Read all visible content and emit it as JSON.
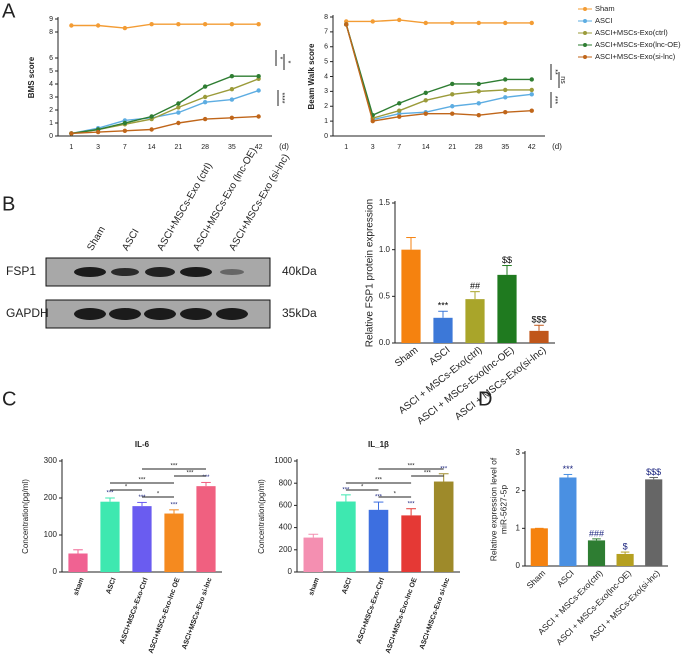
{
  "panel_labels": [
    "A",
    "B",
    "C",
    "D"
  ],
  "blot": {
    "lanes": [
      "Sham",
      "ASCI",
      "ASCI+MSCs-Exo (ctrl)",
      "ASCI+MSCs-Exo (lnc-OE)",
      "ASCI+MSCs-Exo (si-lnc)"
    ],
    "rows": [
      "FSP1",
      "GAPDH"
    ],
    "sizes": [
      "40kDa",
      "35kDa"
    ]
  },
  "chart_data": [
    {
      "type": "line",
      "ylabel": "BMS score",
      "xlabel": "(d)",
      "categories": [
        "1",
        "3",
        "7",
        "14",
        "21",
        "28",
        "35",
        "42"
      ],
      "ylim": [
        0,
        9
      ],
      "yticks": [
        0,
        1,
        2,
        3,
        4,
        5,
        6,
        8,
        9
      ],
      "series": [
        {
          "name": "Sham",
          "color": "#f39c34",
          "values": [
            8.5,
            8.5,
            8.3,
            8.6,
            8.6,
            8.6,
            8.6,
            8.6
          ]
        },
        {
          "name": "ASCI",
          "color": "#5dade2",
          "values": [
            0.2,
            0.6,
            1.2,
            1.4,
            1.8,
            2.6,
            2.8,
            3.5
          ]
        },
        {
          "name": "ASCI+MSCs-Exo(ctrl)",
          "color": "#9b9b3a",
          "values": [
            0.2,
            0.5,
            0.9,
            1.3,
            2.2,
            3.0,
            3.6,
            4.4
          ]
        },
        {
          "name": "ASCI+MSCs-Exo(lnc-OE)",
          "color": "#2e7d32",
          "values": [
            0.2,
            0.5,
            1.0,
            1.5,
            2.5,
            3.8,
            4.6,
            4.6
          ]
        },
        {
          "name": "ASCI+MSCs-Exo(si-lnc)",
          "color": "#c0661a",
          "values": [
            0.2,
            0.3,
            0.4,
            0.5,
            1.0,
            1.3,
            1.4,
            1.5
          ]
        }
      ],
      "annotations": [
        {
          "text": "*"
        },
        {
          "text": "*"
        },
        {
          "text": "****"
        }
      ]
    },
    {
      "type": "line",
      "ylabel": "Beam Walk score",
      "xlabel": "(d)",
      "legend": "outside-right",
      "categories": [
        "1",
        "3",
        "7",
        "14",
        "21",
        "28",
        "35",
        "42"
      ],
      "ylim": [
        0,
        8
      ],
      "yticks": [
        0,
        1,
        2,
        3,
        4,
        5,
        6,
        7,
        8
      ],
      "series": [
        {
          "name": "Sham",
          "color": "#f39c34",
          "values": [
            7.7,
            7.7,
            7.8,
            7.6,
            7.6,
            7.6,
            7.6,
            7.6
          ]
        },
        {
          "name": "ASCI",
          "color": "#5dade2",
          "values": [
            7.5,
            1.1,
            1.5,
            1.6,
            2.0,
            2.2,
            2.6,
            2.8
          ]
        },
        {
          "name": "ASCI+MSCs-Exo(ctrl)",
          "color": "#9b9b3a",
          "values": [
            7.5,
            1.2,
            1.7,
            2.4,
            2.8,
            3.0,
            3.1,
            3.1
          ]
        },
        {
          "name": "ASCI+MSCs-Exo(lnc-OE)",
          "color": "#2e7d32",
          "values": [
            7.5,
            1.4,
            2.2,
            2.9,
            3.5,
            3.5,
            3.8,
            3.8
          ]
        },
        {
          "name": "ASCI+MSCs-Exo(si-lnc)",
          "color": "#c0661a",
          "values": [
            7.5,
            1.0,
            1.3,
            1.5,
            1.5,
            1.4,
            1.6,
            1.7
          ]
        }
      ],
      "annotations": [
        {
          "text": "**"
        },
        {
          "text": "ns"
        },
        {
          "text": "***"
        }
      ]
    },
    {
      "type": "bar",
      "ylabel": "Relative FSP1 protein expression",
      "categories": [
        "Sham",
        "ASCI",
        "ASCI + MSCs-Exo(ctrl)",
        "ASCI + MSCs-Exo(lnc-OE)",
        "ASCI + MSCs-Exo(si-lnc)"
      ],
      "values": [
        1.0,
        0.27,
        0.47,
        0.73,
        0.13
      ],
      "errors": [
        0.13,
        0.07,
        0.08,
        0.1,
        0.06
      ],
      "colors": [
        "#f5820f",
        "#3c78d8",
        "#a9a52a",
        "#1f7a1f",
        "#c0561a"
      ],
      "ylim": [
        0,
        1.5
      ],
      "yticks": [
        {
          "value": 0,
          "label": "0.0"
        },
        {
          "value": 0.5,
          "label": "0.5"
        },
        {
          "value": 1,
          "label": "1.0"
        },
        {
          "value": 1.5,
          "label": "1.5"
        }
      ],
      "annotations": [
        {
          "category": "ASCI",
          "text": "***"
        },
        {
          "category": "ASCI + MSCs-Exo(ctrl)",
          "text": "##"
        },
        {
          "category": "ASCI + MSCs-Exo(lnc-OE)",
          "text": "$$"
        },
        {
          "category": "ASCI + MSCs-Exo(si-lnc)",
          "text": "$$$"
        }
      ]
    },
    {
      "type": "bar",
      "title": "IL-6",
      "ylabel": "Concentration(pg/ml)",
      "categories": [
        "sham",
        "ASCI",
        "ASCI+MSCs-Exo-Ctrl",
        "ASCI+MSCs-Exo-lnc OE",
        "ASCI+MSCs-Exo si-lnc"
      ],
      "values": [
        50,
        190,
        178,
        158,
        232
      ],
      "errors": [
        10,
        10,
        10,
        10,
        10
      ],
      "colors": [
        "#f06292",
        "#3ee8b0",
        "#6a5cf0",
        "#f58a1f",
        "#f06080"
      ],
      "ylim": [
        0,
        300
      ],
      "yticks": [
        0,
        100,
        200,
        300
      ],
      "annotations": [
        {
          "category": "ASCI",
          "text": "***"
        },
        {
          "category": "ASCI+MSCs-Exo-Ctrl",
          "text": "***"
        },
        {
          "category": "ASCI+MSCs-Exo-lnc OE",
          "text": "***"
        },
        {
          "category": "ASCI+MSCs-Exo si-lnc",
          "text": "***"
        }
      ],
      "comparisons": [
        {
          "from": "ASCI+MSCs-Exo-Ctrl",
          "to": "ASCI+MSCs-Exo si-lnc",
          "text": "***"
        },
        {
          "from": "ASCI+MSCs-Exo-lnc OE",
          "to": "ASCI+MSCs-Exo si-lnc",
          "text": "***"
        },
        {
          "from": "ASCI",
          "to": "ASCI+MSCs-Exo-lnc OE",
          "text": "***"
        },
        {
          "from": "ASCI",
          "to": "ASCI+MSCs-Exo-Ctrl",
          "text": "*"
        },
        {
          "from": "ASCI+MSCs-Exo-Ctrl",
          "to": "ASCI+MSCs-Exo-lnc OE",
          "text": "*"
        }
      ]
    },
    {
      "type": "bar",
      "title": "IL_1β",
      "ylabel": "Concentration(pg/ml)",
      "categories": [
        "sham",
        "ASCI",
        "ASCI+MSCs-Exo-Ctrl",
        "ASCI+MSCs-Exo-lnc OE",
        "ASCI+MSCs-Exo si-lnc"
      ],
      "values": [
        310,
        635,
        560,
        510,
        815
      ],
      "errors": [
        30,
        60,
        70,
        60,
        70
      ],
      "colors": [
        "#f48fb1",
        "#3ee8b0",
        "#3d6fe0",
        "#e53935",
        "#9e8a2a"
      ],
      "ylim": [
        0,
        1000
      ],
      "yticks": [
        0,
        200,
        400,
        600,
        800,
        1000
      ],
      "annotations": [
        {
          "category": "ASCI",
          "text": "***"
        },
        {
          "category": "ASCI+MSCs-Exo-Ctrl",
          "text": "***"
        },
        {
          "category": "ASCI+MSCs-Exo-lnc OE",
          "text": "***"
        },
        {
          "category": "ASCI+MSCs-Exo si-lnc",
          "text": "***"
        }
      ],
      "comparisons": [
        {
          "from": "ASCI+MSCs-Exo-Ctrl",
          "to": "ASCI+MSCs-Exo si-lnc",
          "text": "***"
        },
        {
          "from": "ASCI+MSCs-Exo-lnc OE",
          "to": "ASCI+MSCs-Exo si-lnc",
          "text": "***"
        },
        {
          "from": "ASCI",
          "to": "ASCI+MSCs-Exo-lnc OE",
          "text": "***"
        },
        {
          "from": "ASCI",
          "to": "ASCI+MSCs-Exo-Ctrl",
          "text": "*"
        },
        {
          "from": "ASCI+MSCs-Exo-Ctrl",
          "to": "ASCI+MSCs-Exo-lnc OE",
          "text": "*"
        }
      ]
    },
    {
      "type": "bar",
      "ylabel": [
        "Relative expression level of",
        "miR-5627-5p"
      ],
      "categories": [
        "Sham",
        "ASCI",
        "ASCI + MSCs-Exo(ctrl)",
        "ASCI + MSCs-Exo(lnc-OE)",
        "ASCI + MSCs-Exo(si-lnc)"
      ],
      "values": [
        1.0,
        2.35,
        0.68,
        0.32,
        2.3
      ],
      "errors": [
        0,
        0.08,
        0.04,
        0.05,
        0.05
      ],
      "colors": [
        "#f5820f",
        "#4a90e2",
        "#2e7d32",
        "#b5a020",
        "#666666"
      ],
      "ylim": [
        0,
        3
      ],
      "yticks": [
        0,
        1,
        2,
        3
      ],
      "annotations": [
        {
          "category": "ASCI",
          "text": "***"
        },
        {
          "category": "ASCI + MSCs-Exo(ctrl)",
          "text": "###"
        },
        {
          "category": "ASCI + MSCs-Exo(lnc-OE)",
          "text": "$"
        },
        {
          "category": "ASCI + MSCs-Exo(si-lnc)",
          "text": "$$$"
        }
      ]
    }
  ]
}
